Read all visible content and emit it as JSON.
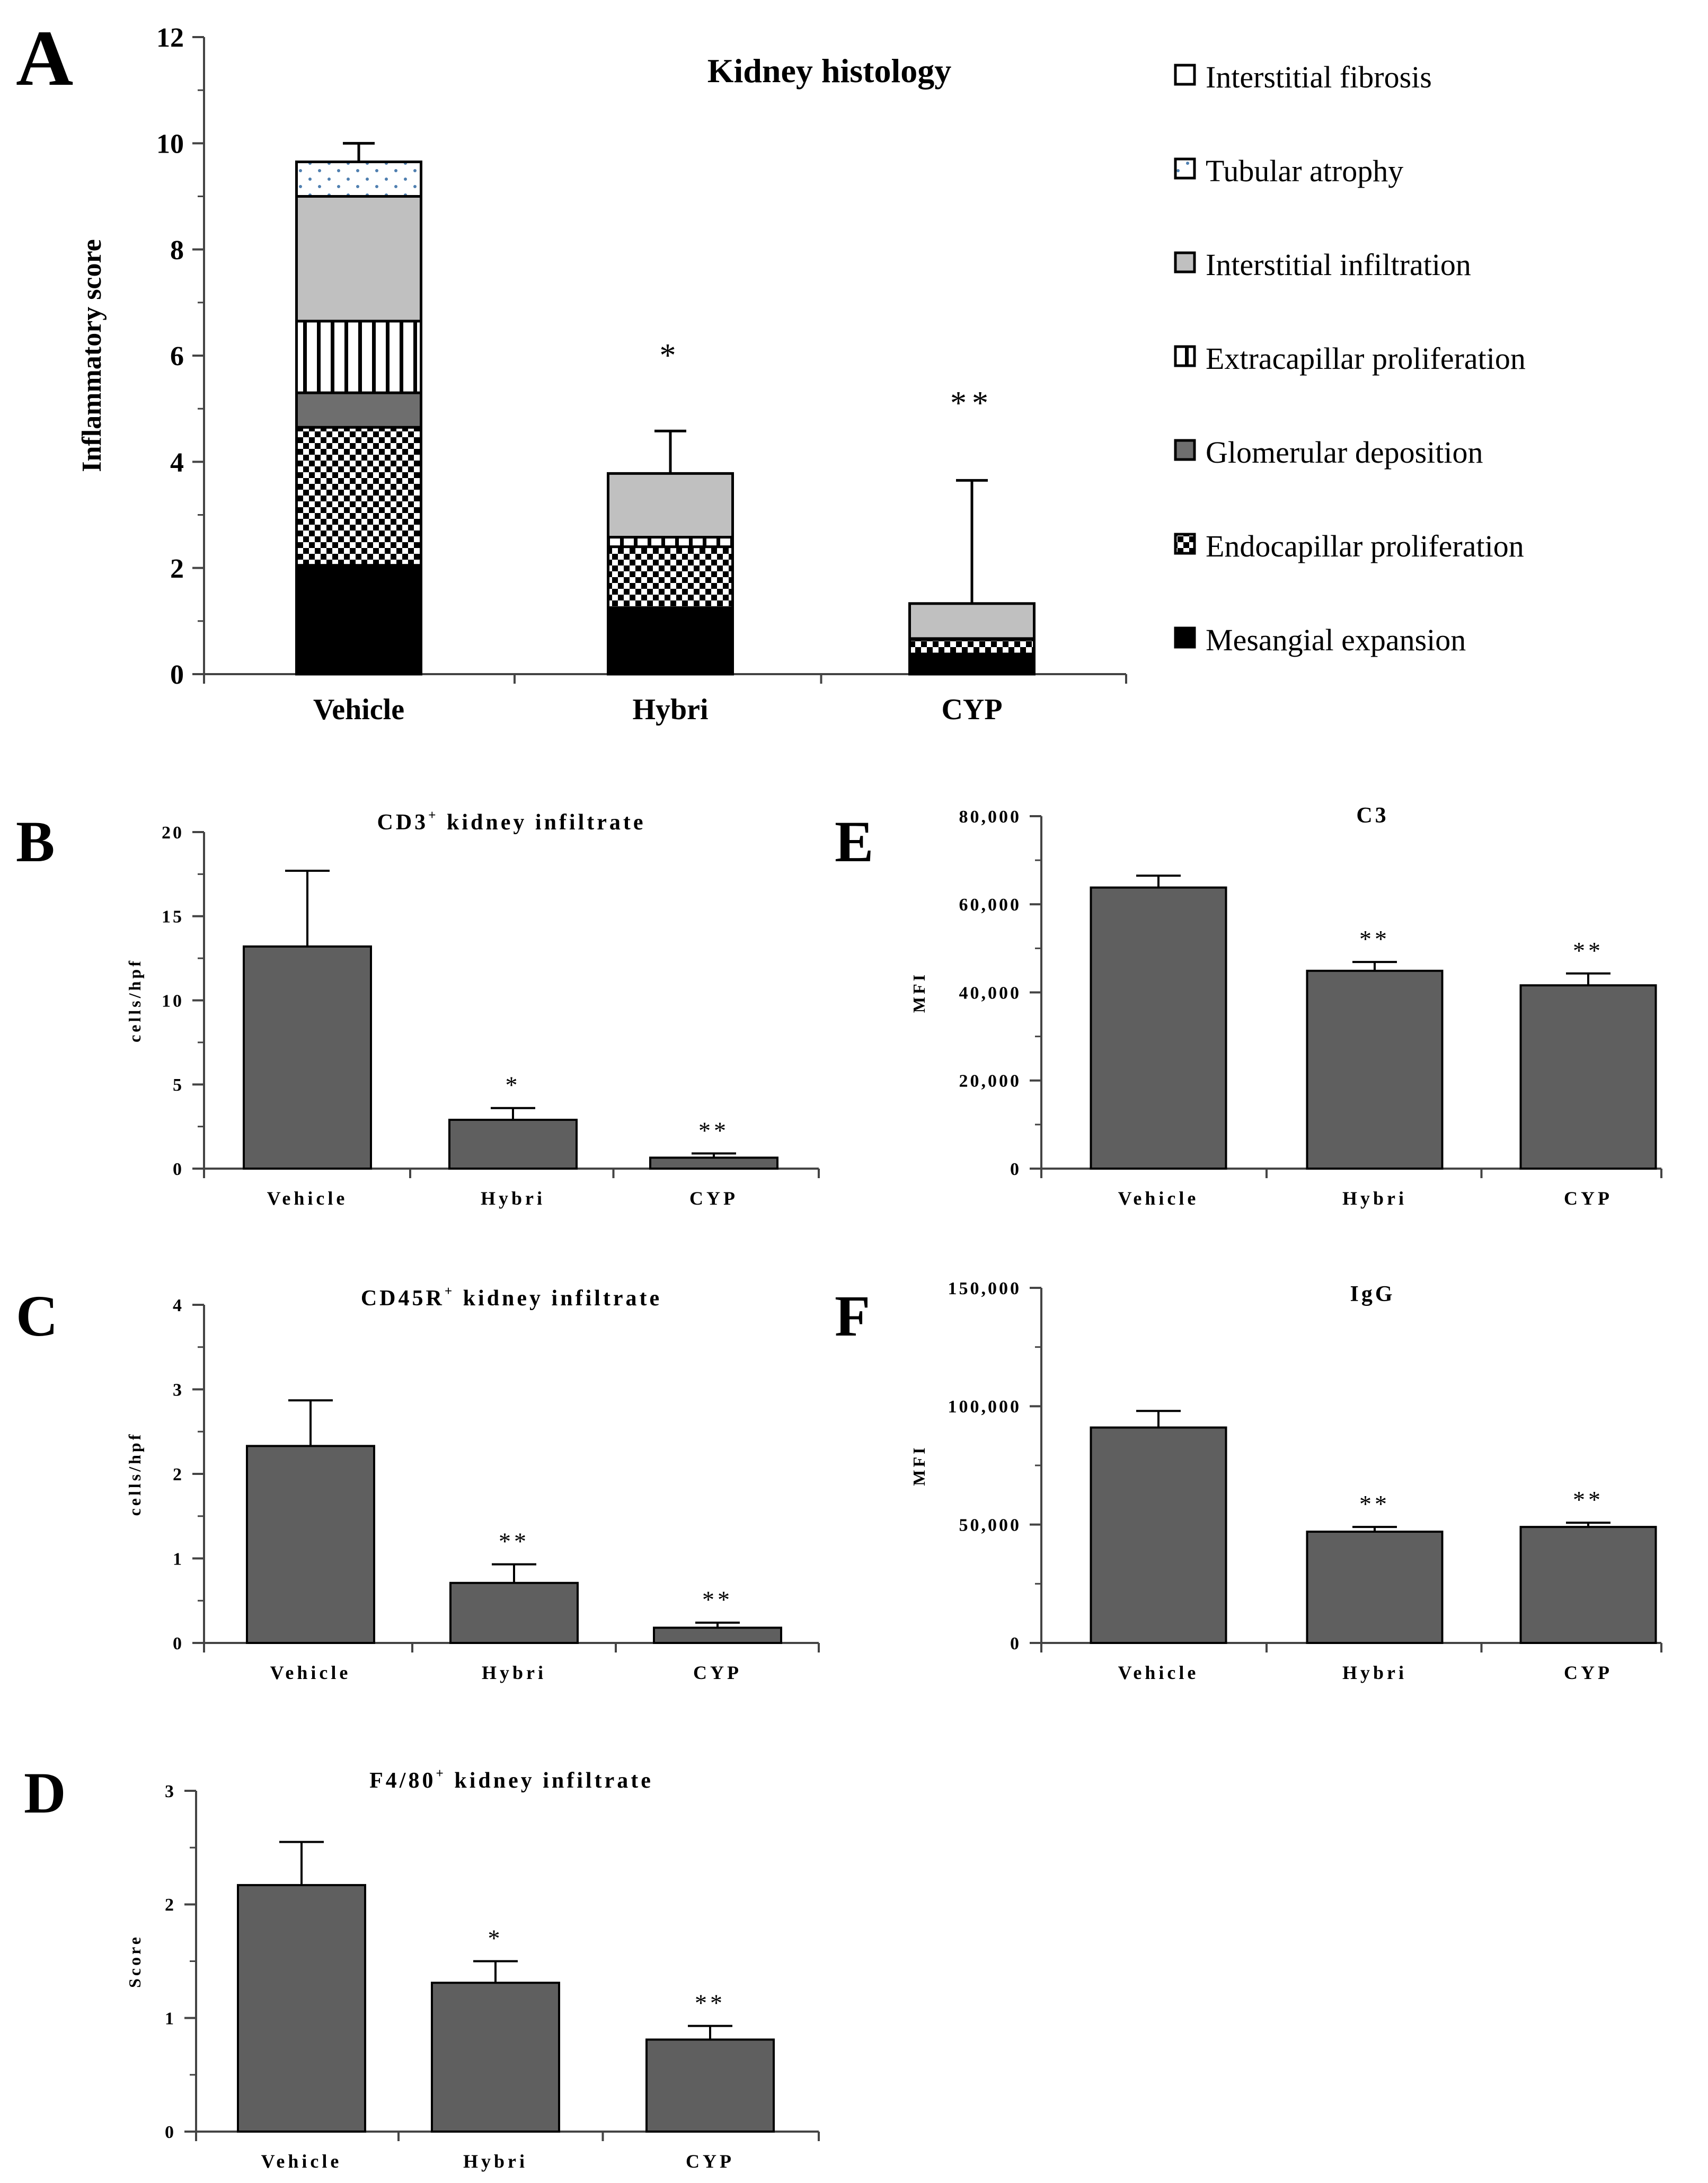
{
  "figure": {
    "panel_letters": [
      "A",
      "B",
      "C",
      "D",
      "E",
      "F"
    ]
  },
  "patterns": {
    "Mesangial expansion": "solid-black",
    "Endocapillar proliferation": "checker",
    "Glomerular deposition": "dark-gray",
    "Extracapillar proliferation": "vertical-stripes",
    "Interstitial infiltration": "light-gray",
    "Tubular atrophy": "dots",
    "Interstitial fibrosis": "white"
  },
  "colors": {
    "bar_fill": "#5f5f5f",
    "light_gray": "#c0c0c0",
    "dark_gray": "#6e6e6e",
    "dot_blue": "#4f7fb0"
  },
  "chart_data": [
    {
      "id": "A",
      "type": "bar",
      "stacked": true,
      "title": "Kidney histology",
      "ylabel": "Inflammatory score",
      "xlabel": "",
      "ylim": [
        0,
        12
      ],
      "yticks": [
        "0",
        "2",
        "4",
        "6",
        "8",
        "10",
        "12"
      ],
      "categories": [
        "Vehicle",
        "Hybri",
        "CYP"
      ],
      "series": [
        {
          "name": "Mesangial expansion",
          "values": [
            2.05,
            1.25,
            0.38
          ]
        },
        {
          "name": "Endocapillar proliferation",
          "values": [
            2.6,
            1.15,
            0.27
          ]
        },
        {
          "name": "Glomerular deposition",
          "values": [
            0.65,
            0.0,
            0.0
          ]
        },
        {
          "name": "Extracapillar proliferation",
          "values": [
            1.35,
            0.18,
            0.02
          ]
        },
        {
          "name": "Interstitial infiltration",
          "values": [
            2.35,
            1.2,
            0.66
          ]
        },
        {
          "name": "Tubular atrophy",
          "values": [
            0.65,
            0.0,
            0.0
          ]
        },
        {
          "name": "Interstitial fibrosis",
          "values": [
            0.0,
            0.0,
            0.0
          ]
        }
      ],
      "error_top": [
        10.0,
        4.58,
        3.65
      ],
      "significance": [
        "",
        "*",
        "**"
      ],
      "legend": [
        "Interstitial fibrosis",
        "Tubular atrophy",
        "Interstitial infiltration",
        "Extracapillar proliferation",
        "Glomerular deposition",
        "Endocapillar proliferation",
        "Mesangial expansion"
      ],
      "legend_position": "right"
    },
    {
      "id": "B",
      "type": "bar",
      "title": "CD3",
      "title_sup": "+",
      "title_rest": " kidney infiltrate",
      "ylabel": "cells/hpf",
      "ylim": [
        0,
        20
      ],
      "yticks": [
        "0",
        "5",
        "10",
        "15",
        "20"
      ],
      "categories": [
        "Vehicle",
        "Hybri",
        "CYP"
      ],
      "values": [
        13.2,
        2.9,
        0.65
      ],
      "errors": [
        4.5,
        0.7,
        0.25
      ],
      "significance": [
        "",
        "*",
        "**"
      ]
    },
    {
      "id": "C",
      "type": "bar",
      "title": "CD45R",
      "title_sup": "+",
      "title_rest": " kidney infiltrate",
      "ylabel": "cells/hpf",
      "ylim": [
        0,
        4
      ],
      "yticks": [
        "0",
        "1",
        "2",
        "3",
        "4"
      ],
      "categories": [
        "Vehicle",
        "Hybri",
        "CYP"
      ],
      "values": [
        2.33,
        0.71,
        0.18
      ],
      "errors": [
        0.54,
        0.22,
        0.06
      ],
      "significance": [
        "",
        "**",
        "**"
      ]
    },
    {
      "id": "D",
      "type": "bar",
      "title": "F4/80",
      "title_sup": "+",
      "title_rest": " kidney infiltrate",
      "ylabel": "Score",
      "ylim": [
        0,
        3
      ],
      "yticks": [
        "0",
        "1",
        "2",
        "3"
      ],
      "categories": [
        "Vehicle",
        "Hybri",
        "CYP"
      ],
      "values": [
        2.17,
        1.31,
        0.81
      ],
      "errors": [
        0.38,
        0.19,
        0.12
      ],
      "significance": [
        "",
        "*",
        "**"
      ]
    },
    {
      "id": "E",
      "type": "bar",
      "title": "C3",
      "title_sup": "",
      "title_rest": "",
      "ylabel": "MFI",
      "ylim": [
        0,
        80000
      ],
      "yticks": [
        "0",
        "20,000",
        "40,000",
        "60,000",
        "80,000"
      ],
      "categories": [
        "Vehicle",
        "Hybri",
        "CYP"
      ],
      "values": [
        63800,
        44900,
        41600
      ],
      "errors": [
        2700,
        2000,
        2700
      ],
      "significance": [
        "",
        "**",
        "**"
      ]
    },
    {
      "id": "F",
      "type": "bar",
      "title": "IgG",
      "title_sup": "",
      "title_rest": "",
      "ylabel": "MFI",
      "ylim": [
        0,
        150000
      ],
      "yticks": [
        "0",
        "50,000",
        "100,000",
        "150,000"
      ],
      "categories": [
        "Vehicle",
        "Hybri",
        "CYP"
      ],
      "values": [
        91000,
        47000,
        49000
      ],
      "errors": [
        7000,
        2000,
        1800
      ],
      "significance": [
        "",
        "**",
        "**"
      ]
    }
  ]
}
